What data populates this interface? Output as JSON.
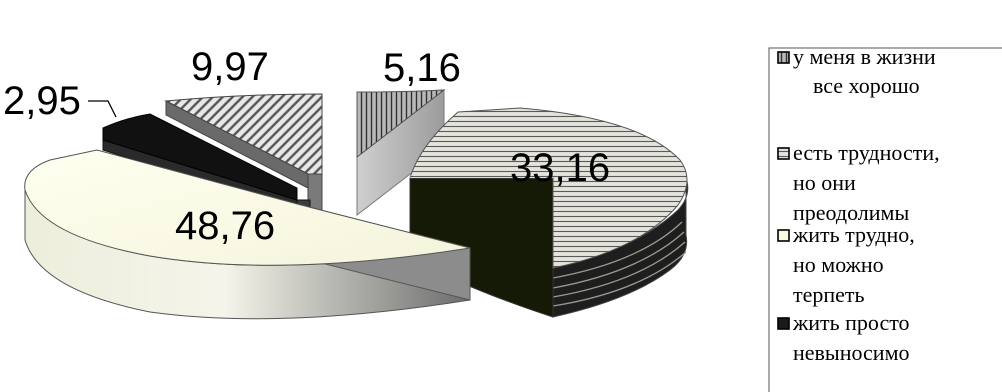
{
  "chart_data": {
    "type": "pie",
    "style": "3d-exploded",
    "legend_position": "right",
    "series": [
      {
        "categories": [
          "у меня в жизни все хорошо",
          "есть трудности, но они преодолимы",
          "жить трудно, но можно терпеть",
          "жить просто невыносимо",
          ""
        ],
        "values": [
          5.16,
          33.16,
          48.76,
          2.95,
          9.97
        ],
        "value_labels": [
          "5,16",
          "33,16",
          "48,76",
          "2,95",
          "9,97"
        ]
      }
    ],
    "legend": [
      {
        "lines": [
          "у меня в жизни",
          "все хорошо"
        ],
        "color": "#a9a9a9",
        "pattern": "vertical-stripes"
      },
      {
        "lines": [
          "есть трудности,",
          "но они",
          "преодолимы"
        ],
        "color": "#d8d8d0",
        "pattern": "horizontal-stripes"
      },
      {
        "lines": [
          "жить трудно,",
          "но можно",
          "терпеть"
        ],
        "color": "#fafae0",
        "pattern": "solid"
      },
      {
        "lines": [
          "жить просто",
          "невыносимо"
        ],
        "color": "#1a1a1a",
        "pattern": "solid"
      }
    ],
    "colors": {
      "slice_vertical": "#a9a9a9",
      "slice_horizontal": "#d8d8d0",
      "slice_yellow": "#fafae0",
      "slice_black": "#1a1a1a",
      "slice_diagonal": "#8c8c8c"
    }
  }
}
